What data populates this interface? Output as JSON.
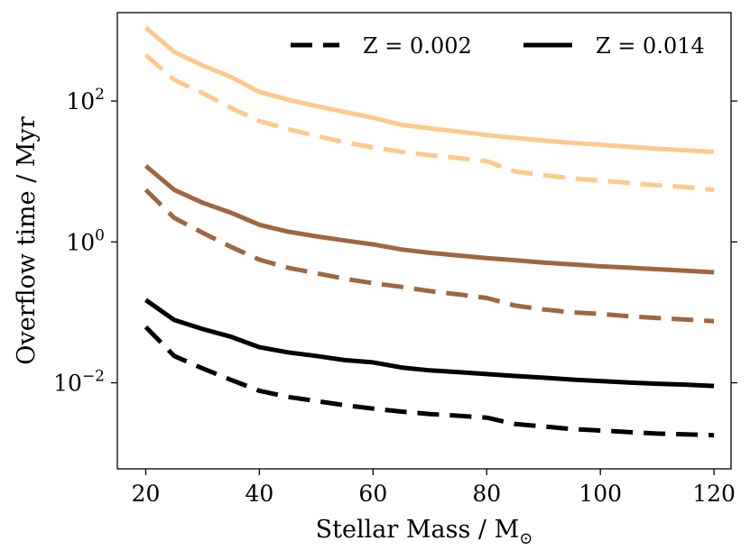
{
  "chart_data": {
    "type": "line",
    "title": "",
    "xlabel": "Stellar Mass / M",
    "xlabel_subscript": "⊙",
    "ylabel": "Overflow time / Myr",
    "xlim": [
      15,
      123
    ],
    "ylim": [
      0.0006,
      1800
    ],
    "yscale": "log",
    "x_ticks": [
      20,
      40,
      60,
      80,
      100,
      120
    ],
    "y_ticks": [
      {
        "value": 0.01,
        "base": "10",
        "exp": "−2"
      },
      {
        "value": 1,
        "base": "10",
        "exp": "0"
      },
      {
        "value": 100,
        "base": "10",
        "exp": "2"
      }
    ],
    "x": [
      20,
      25,
      30,
      35,
      40,
      45,
      50,
      55,
      60,
      65,
      70,
      75,
      80,
      85,
      90,
      95,
      100,
      105,
      110,
      115,
      120
    ],
    "legend": {
      "position": "top-right",
      "entries": [
        {
          "label": "Z = 0.002",
          "dash": "dashed"
        },
        {
          "label": "Z = 0.014",
          "dash": "solid"
        }
      ]
    },
    "series": [
      {
        "name": "Z = 0.014 (upper)",
        "color": "#fec98a",
        "dash": "solid",
        "values": [
          1100,
          500,
          320,
          220,
          135,
          105,
          85,
          70,
          58,
          46,
          41,
          37,
          33,
          30,
          27.5,
          25.5,
          24,
          22.5,
          21,
          20,
          19
        ]
      },
      {
        "name": "Z = 0.002 (upper)",
        "color": "#fec98a",
        "dash": "dashed",
        "values": [
          450,
          200,
          130,
          80,
          52,
          40,
          32,
          26,
          22,
          19,
          17,
          15.5,
          14,
          10,
          8.9,
          8,
          7.4,
          6.9,
          6.4,
          6,
          5.5
        ]
      },
      {
        "name": "Z = 0.014 (middle)",
        "color": "#a0663e",
        "dash": "solid",
        "values": [
          12,
          5.5,
          3.6,
          2.6,
          1.75,
          1.4,
          1.2,
          1.05,
          0.92,
          0.78,
          0.7,
          0.64,
          0.59,
          0.55,
          0.51,
          0.48,
          0.45,
          0.43,
          0.41,
          0.39,
          0.37
        ]
      },
      {
        "name": "Z = 0.002 (middle)",
        "color": "#a0663e",
        "dash": "dashed",
        "values": [
          5.5,
          2.2,
          1.35,
          0.85,
          0.56,
          0.43,
          0.36,
          0.3,
          0.26,
          0.23,
          0.2,
          0.18,
          0.16,
          0.125,
          0.11,
          0.1,
          0.095,
          0.088,
          0.083,
          0.079,
          0.075
        ]
      },
      {
        "name": "Z = 0.014 (lower)",
        "color": "#000000",
        "dash": "solid",
        "values": [
          0.15,
          0.078,
          0.058,
          0.045,
          0.032,
          0.027,
          0.024,
          0.021,
          0.0195,
          0.0165,
          0.015,
          0.0142,
          0.0133,
          0.0125,
          0.0118,
          0.0111,
          0.0106,
          0.0101,
          0.0097,
          0.0094,
          0.009
        ]
      },
      {
        "name": "Z = 0.002 (lower)",
        "color": "#000000",
        "dash": "dashed",
        "values": [
          0.062,
          0.024,
          0.016,
          0.011,
          0.0077,
          0.0063,
          0.0055,
          0.0048,
          0.0043,
          0.0039,
          0.0036,
          0.0034,
          0.0032,
          0.0026,
          0.0024,
          0.0022,
          0.0021,
          0.002,
          0.0019,
          0.00185,
          0.0018
        ]
      }
    ]
  }
}
